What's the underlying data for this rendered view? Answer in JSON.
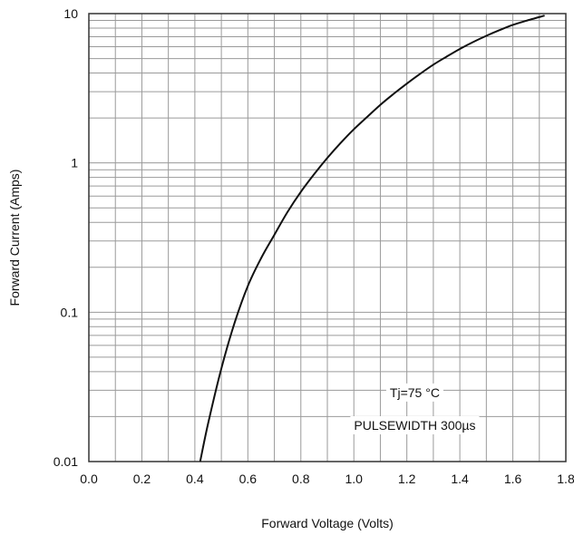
{
  "chart_data": {
    "type": "line",
    "title": "",
    "xlabel": "Forward Voltage (Volts)",
    "ylabel": "Forward Current (Amps)",
    "xlim": [
      0.0,
      1.8
    ],
    "ylim": [
      0.01,
      10
    ],
    "yscale": "log",
    "grid": true,
    "x_ticks": [
      0.0,
      0.2,
      0.4,
      0.6,
      0.8,
      1.0,
      1.2,
      1.4,
      1.6,
      1.8
    ],
    "x_tick_labels": [
      "0.0",
      "0.2",
      "0.4",
      "0.6",
      "0.8",
      "1.0",
      "1.2",
      "1.4",
      "1.6",
      "1.8"
    ],
    "y_ticks": [
      0.01,
      0.1,
      1,
      10
    ],
    "y_tick_labels": [
      "0.01",
      "0.1",
      "1",
      "10"
    ],
    "series": [
      {
        "x": [
          0.42,
          0.45,
          0.5,
          0.55,
          0.6,
          0.65,
          0.7,
          0.75,
          0.8,
          0.85,
          0.9,
          0.95,
          1.0,
          1.05,
          1.1,
          1.15,
          1.2,
          1.25,
          1.3,
          1.35,
          1.4,
          1.45,
          1.5,
          1.55,
          1.6,
          1.65,
          1.72
        ],
        "y": [
          0.01,
          0.018,
          0.042,
          0.085,
          0.15,
          0.23,
          0.33,
          0.47,
          0.64,
          0.84,
          1.08,
          1.36,
          1.68,
          2.03,
          2.45,
          2.9,
          3.4,
          3.95,
          4.55,
          5.15,
          5.8,
          6.45,
          7.1,
          7.75,
          8.4,
          8.95,
          9.7
        ]
      }
    ],
    "annotations": [
      {
        "text": "Tj=75 °C",
        "x": 1.23,
        "y": 0.029
      },
      {
        "text": "PULSEWIDTH 300µs",
        "x": 1.23,
        "y": 0.0175
      }
    ],
    "colors": {
      "curve": "#111111",
      "grid": "#9a9a9a",
      "frame": "#333333"
    }
  }
}
